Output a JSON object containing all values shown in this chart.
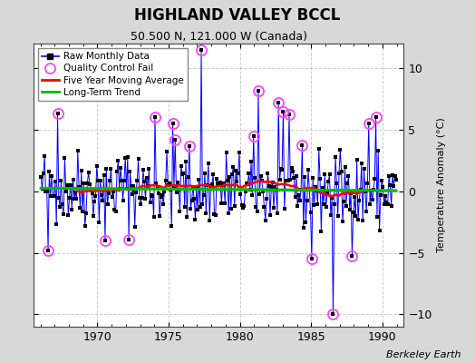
{
  "title": "HIGHLAND VALLEY BCCL",
  "subtitle": "50.500 N, 121.000 W (Canada)",
  "ylabel": "Temperature Anomaly (°C)",
  "attribution": "Berkeley Earth",
  "xlim": [
    1965.5,
    1991.5
  ],
  "ylim": [
    -11,
    12
  ],
  "yticks": [
    -10,
    -5,
    0,
    5,
    10
  ],
  "xticks": [
    1970,
    1975,
    1980,
    1985,
    1990
  ],
  "outer_bg": "#d8d8d8",
  "plot_bg": "#ffffff",
  "raw_line_color": "#0000ff",
  "raw_marker_color": "#000000",
  "qc_marker_color": "#ff44ff",
  "moving_avg_color": "#ff0000",
  "trend_color": "#00bb00",
  "seed": 42,
  "start_year": 1966,
  "end_year": 1990
}
